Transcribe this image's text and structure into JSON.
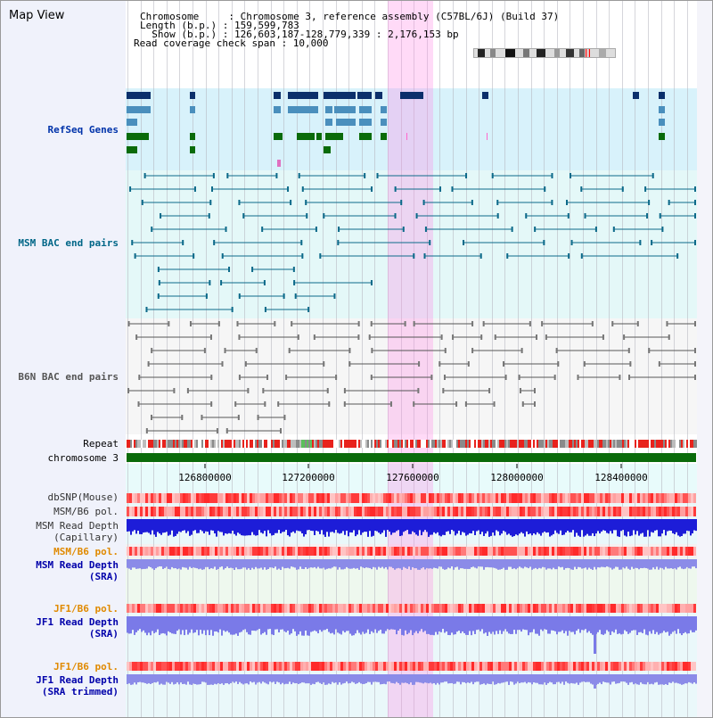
{
  "title": "Map View",
  "info": {
    "chromosome_line": "Chromosome     : Chromosome 3, reference assembly (C57BL/6J) (Build 37)",
    "length_line": "Length (b.p.) : 159,599,783",
    "show_line": "  Show (b.p.) : 126,603,187-128,779,339 : 2,176,153 bp",
    "coverage_line": "Read coverage check span : 10,000"
  },
  "tracks": {
    "refseq": "RefSeq Genes",
    "msm_bac": "MSM BAC end pairs",
    "b6n_bac": "B6N BAC end pairs",
    "repeat": "Repeat",
    "chromosome": "chromosome 3",
    "dbsnp": "dbSNP(Mouse)",
    "msm_b6_pol_1": "MSM/B6 pol.",
    "msm_read_depth_cap": "MSM Read Depth\n(Capillary)",
    "msm_b6_pol_2": "MSM/B6 pol.",
    "msm_read_depth_sra": "MSM Read Depth\n(SRA)",
    "jf1_b6_pol_1": "JF1/B6 pol.",
    "jf1_read_depth_sra": "JF1 Read Depth\n(SRA)",
    "jf1_b6_pol_2": "JF1/B6 pol.",
    "jf1_read_depth_trim": "JF1 Read Depth\n(SRA trimmed)"
  },
  "axis_ticks": [
    "126800000",
    "127200000",
    "127600000",
    "128000000",
    "128400000"
  ],
  "colors": {
    "refseq_bg": "#d8f2fb",
    "msm_bg": "#e4f8f8",
    "b6n_bg": "#f4f6f6",
    "lower_bg": "#eaf8fa",
    "highlight": "#ffbde9",
    "msm_label": "#006687",
    "refseq_label": "#0033aa",
    "pol_label": "#e08a00",
    "depth_label": "#0000aa",
    "chromosome_bar": "#0a6b0a",
    "snp_red": "#ff3030",
    "depth_blue": "#1d1dd8"
  }
}
